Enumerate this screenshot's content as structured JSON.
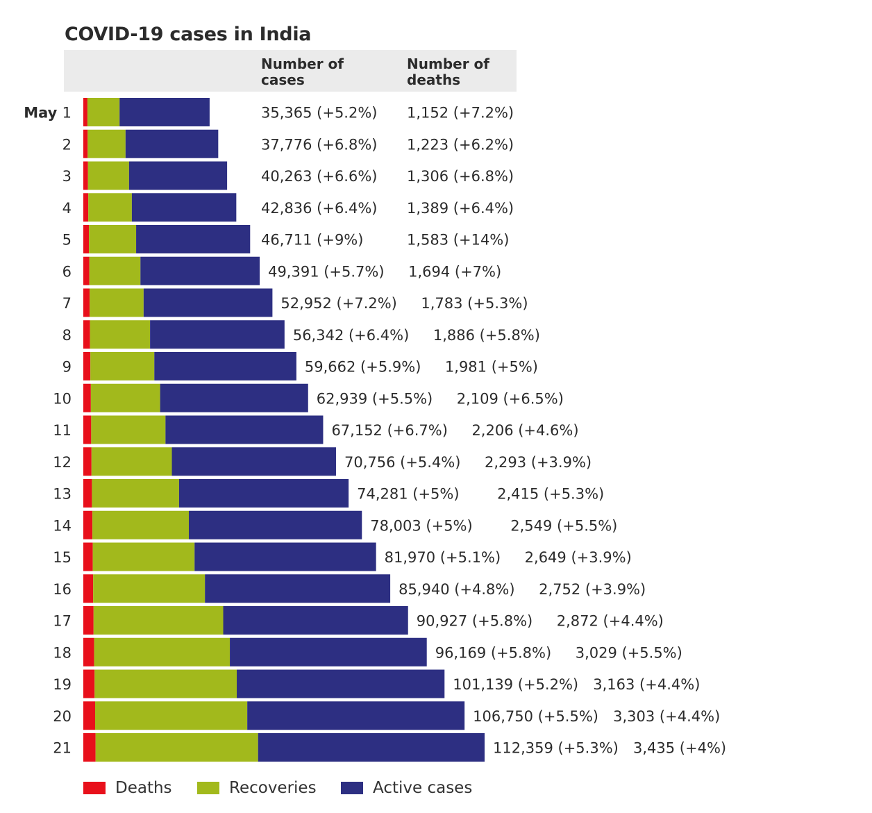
{
  "chart_data": {
    "type": "bar",
    "stacked": true,
    "orientation": "horizontal",
    "title": "COVID-19 cases in India",
    "column_headers": [
      "Number of\ncases",
      "Number of\ndeaths"
    ],
    "month_label": "May",
    "categories": [
      "1",
      "2",
      "3",
      "4",
      "5",
      "6",
      "7",
      "8",
      "9",
      "10",
      "11",
      "12",
      "13",
      "14",
      "15",
      "16",
      "17",
      "18",
      "19",
      "20",
      "21"
    ],
    "series": [
      {
        "name": "Deaths",
        "color": "#e8101b",
        "values": [
          1152,
          1223,
          1306,
          1389,
          1583,
          1694,
          1783,
          1886,
          1981,
          2109,
          2206,
          2293,
          2415,
          2549,
          2649,
          2752,
          2872,
          3029,
          3163,
          3303,
          3435
        ]
      },
      {
        "name": "Recoveries",
        "color": "#a2b91c",
        "values": [
          9000,
          10600,
          11500,
          12200,
          13200,
          14300,
          15100,
          16800,
          17900,
          19400,
          20800,
          22500,
          24400,
          27000,
          28500,
          31300,
          36300,
          38000,
          39800,
          42600,
          45500
        ]
      },
      {
        "name": "Active cases",
        "color": "#2d2f82",
        "values": [
          25213,
          25953,
          27457,
          29247,
          31928,
          33397,
          36069,
          37656,
          39781,
          41430,
          44146,
          45963,
          47466,
          48454,
          50821,
          51888,
          51755,
          55140,
          58176,
          60847,
          63424
        ]
      }
    ],
    "totals": [
      35365,
      37776,
      40263,
      42836,
      46711,
      49391,
      52952,
      56342,
      59662,
      62939,
      67152,
      70756,
      74281,
      78003,
      81970,
      85940,
      90927,
      96169,
      101139,
      106750,
      112359
    ],
    "case_labels": [
      "35,365 (+5.2%)",
      "37,776 (+6.8%)",
      "40,263 (+6.6%)",
      "42,836 (+6.4%)",
      "46,711 (+9%)",
      "49,391 (+5.7%)",
      "52,952 (+7.2%)",
      "56,342 (+6.4%)",
      "59,662 (+5.9%)",
      "62,939 (+5.5%)",
      "67,152 (+6.7%)",
      "70,756 (+5.4%)",
      "74,281 (+5%)",
      "78,003 (+5%)",
      "81,970 (+5.1%)",
      "85,940 (+4.8%)",
      "90,927 (+5.8%)",
      "96,169 (+5.8%)",
      "101,139 (+5.2%)",
      "106,750 (+5.5%)",
      "112,359 (+5.3%)"
    ],
    "death_labels": [
      "1,152 (+7.2%)",
      "1,223 (+6.2%)",
      "1,306 (+6.8%)",
      "1,389 (+6.4%)",
      "1,583 (+14%)",
      "1,694 (+7%)",
      "1,783 (+5.3%)",
      "1,886 (+5.8%)",
      "1,981 (+5%)",
      "2,109 (+6.5%)",
      "2,206 (+4.6%)",
      "2,293 (+3.9%)",
      "2,415 (+5.3%)",
      "2,549 (+5.5%)",
      "2,649 (+3.9%)",
      "2,752 (+3.9%)",
      "2,872 (+4.4%)",
      "3,029 (+5.5%)",
      "3,163 (+4.4%)",
      "3,303 (+4.4%)",
      "3,435 (+4%)"
    ],
    "legend": {
      "position": "bottom-left",
      "entries": [
        "Deaths",
        "Recoveries",
        "Active cases"
      ]
    },
    "grid": false
  }
}
